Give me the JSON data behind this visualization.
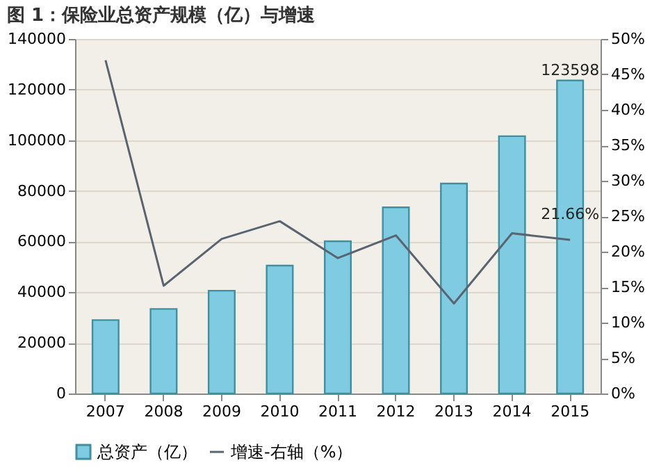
{
  "chart_data": {
    "type": "bar",
    "title": "图 1：保险业总资产规模（亿）与增速",
    "categories": [
      "2007",
      "2008",
      "2009",
      "2010",
      "2011",
      "2012",
      "2013",
      "2014",
      "2015"
    ],
    "series": [
      {
        "name": "总资产（亿）",
        "color": "#7ecbe2",
        "values": [
          29000,
          33400,
          40600,
          50500,
          60100,
          73500,
          82900,
          101600,
          123598
        ],
        "value_labels": [
          null,
          null,
          null,
          null,
          null,
          null,
          null,
          null,
          "123598"
        ]
      },
      {
        "name": "增速-右轴（%）",
        "type": "line",
        "axis": "y2",
        "color": "#5a6470",
        "values": [
          47,
          15.2,
          21.8,
          24.3,
          19.1,
          22.3,
          12.7,
          22.6,
          21.66
        ],
        "value_labels": [
          null,
          null,
          null,
          null,
          null,
          null,
          null,
          null,
          "21.66%"
        ]
      }
    ],
    "ylim": [
      0,
      140000
    ],
    "yticks": [
      0,
      20000,
      40000,
      60000,
      80000,
      100000,
      120000,
      140000
    ],
    "y2lim": [
      0,
      50
    ],
    "y2ticks": [
      {
        "value": 0,
        "label": "0%"
      },
      {
        "value": 5,
        "label": "5%"
      },
      {
        "value": 10,
        "label": "10%"
      },
      {
        "value": 15,
        "label": "15%"
      },
      {
        "value": 20,
        "label": "20%"
      },
      {
        "value": 25,
        "label": "25%"
      },
      {
        "value": 30,
        "label": "30%"
      },
      {
        "value": 35,
        "label": "35%"
      },
      {
        "value": 40,
        "label": "40%"
      },
      {
        "value": 45,
        "label": "45%"
      },
      {
        "value": 50,
        "label": "50%"
      }
    ],
    "grid": "y",
    "legend": "bottom"
  }
}
